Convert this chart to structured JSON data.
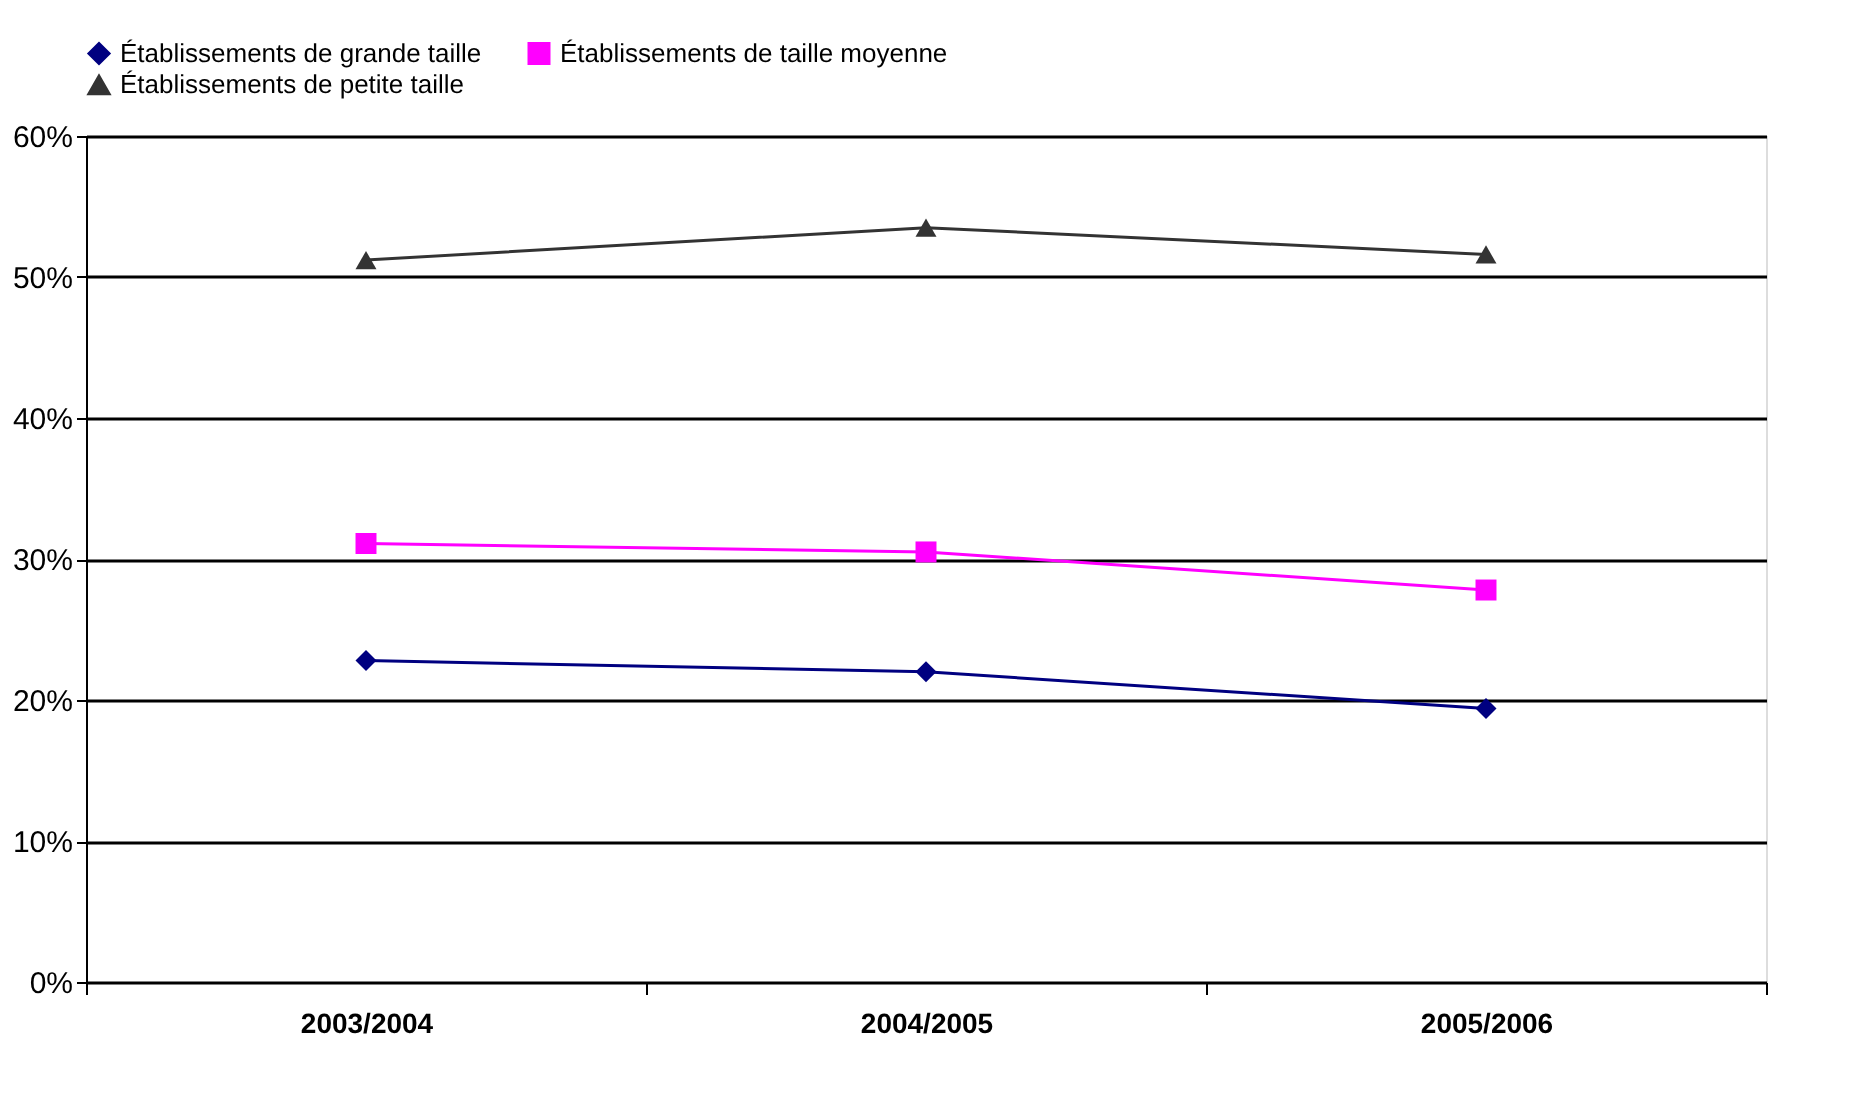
{
  "chart_data": {
    "type": "line",
    "categories": [
      "2003/2004",
      "2004/2005",
      "2005/2006"
    ],
    "series": [
      {
        "name": "Établissements de grande taille",
        "color": "#000080",
        "marker": "diamond",
        "values": [
          22.8,
          22.0,
          19.4
        ]
      },
      {
        "name": "Établissements de taille moyenne",
        "color": "#ff00ff",
        "marker": "square",
        "values": [
          31.1,
          30.5,
          27.8
        ]
      },
      {
        "name": "Établissements de petite taille",
        "color": "#333333",
        "marker": "triangle",
        "values": [
          51.2,
          53.5,
          51.6
        ]
      }
    ],
    "ylim": [
      0,
      60
    ],
    "yticks": [
      {
        "value": 0,
        "label": "0%"
      },
      {
        "value": 10,
        "label": "10%"
      },
      {
        "value": 20,
        "label": "20%"
      },
      {
        "value": 30,
        "label": "30%"
      },
      {
        "value": 40,
        "label": "40%"
      },
      {
        "value": 50,
        "label": "50%"
      },
      {
        "value": 60,
        "label": "60%"
      }
    ],
    "grid": "y",
    "legend": "top",
    "line_style": "solid"
  }
}
